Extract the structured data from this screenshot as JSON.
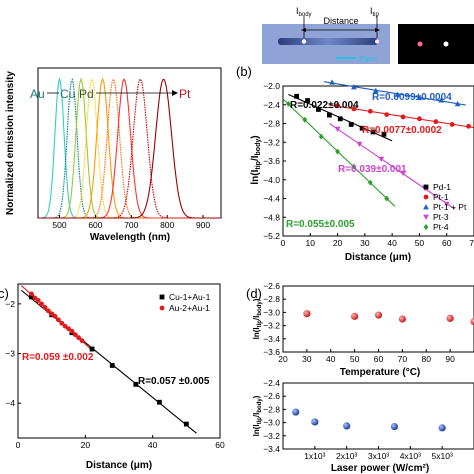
{
  "chart_data": [
    {
      "panel": "a",
      "type": "line",
      "xlabel": "Wavelength (nm)",
      "ylabel": "Normalized emission intensity",
      "xlim": [
        440,
        950
      ],
      "xticks": [
        500,
        600,
        700,
        800,
        900
      ],
      "annotations": [
        "Au",
        "Cu",
        "Pd",
        "Pt"
      ],
      "series": [
        {
          "peak": 500,
          "width": 30,
          "color": "#33cccc"
        },
        {
          "peak": 535,
          "width": 32,
          "color": "#008080"
        },
        {
          "peak": 560,
          "width": 34,
          "color": "#99cc33"
        },
        {
          "peak": 590,
          "width": 36,
          "color": "#ffcc00"
        },
        {
          "peak": 620,
          "width": 38,
          "color": "#ff9900"
        },
        {
          "peak": 650,
          "width": 40,
          "color": "#ff6600"
        },
        {
          "peak": 680,
          "width": 42,
          "color": "#ff3333"
        },
        {
          "peak": 725,
          "width": 46,
          "color": "#cc0000"
        },
        {
          "peak": 790,
          "width": 52,
          "color": "#990000"
        }
      ]
    },
    {
      "panel": "b",
      "type": "scatter",
      "xlabel": "Distance (μm)",
      "ylabel": "ln(I",
      "ylabel_sub1": "tip",
      "ylabel_mid": "/I",
      "ylabel_sub2": "body",
      "ylabel_end": ")",
      "xlim": [
        0,
        70
      ],
      "ylim": [
        -5.2,
        -2.0
      ],
      "xticks": [
        0,
        10,
        20,
        30,
        40,
        50,
        60,
        70
      ],
      "yticks": [
        -2.0,
        -2.4,
        -2.8,
        -3.2,
        -3.6,
        -4.0,
        -4.4,
        -4.8,
        -5.2
      ],
      "inset": {
        "distance_label": "Distance",
        "body_label": "I",
        "body_sub": "body",
        "tip_label": "I",
        "tip_sub": "tip",
        "scale_label": "30μm"
      },
      "series": [
        {
          "name": "Pd-1",
          "color": "#000000",
          "marker": "square",
          "rate": "R=0.022±0.004",
          "x": [
            5,
            9,
            13,
            17,
            21,
            25,
            29,
            33,
            37
          ],
          "y": [
            -2.22,
            -2.31,
            -2.5,
            -2.62,
            -2.7,
            -2.82,
            -2.9,
            -2.98,
            -3.03
          ]
        },
        {
          "name": "Pt-1",
          "color": "#e31a1c",
          "marker": "circle",
          "rate": "R=0.0077±0.0002",
          "x": [
            20,
            26,
            32,
            38,
            44,
            50,
            56,
            62,
            68
          ],
          "y": [
            -2.42,
            -2.49,
            -2.54,
            -2.61,
            -2.66,
            -2.7,
            -2.76,
            -2.82,
            -2.86
          ]
        },
        {
          "name": "Pt-1 + Pt",
          "color": "#1f5fbf",
          "marker": "triangle",
          "rate": "R=0.0099±0.0004",
          "x": [
            18,
            26,
            34,
            42,
            50,
            58,
            64
          ],
          "y": [
            -1.92,
            -2.02,
            -2.1,
            -2.18,
            -2.25,
            -2.3,
            -2.38
          ]
        },
        {
          "name": "Pt-3",
          "color": "#cc44cc",
          "marker": "triangle-down",
          "rate": "R=0.039±0.001",
          "x": [
            20,
            28,
            36,
            44,
            52,
            60
          ],
          "y": [
            -2.92,
            -3.24,
            -3.56,
            -3.86,
            -4.18,
            -4.52
          ]
        },
        {
          "name": "Pt-4",
          "color": "#2ca02c",
          "marker": "diamond",
          "rate": "R=0.055±0.005",
          "x": [
            2,
            8,
            14,
            20,
            26,
            32,
            38
          ],
          "y": [
            -2.38,
            -2.72,
            -3.08,
            -3.4,
            -3.72,
            -4.06,
            -4.4
          ]
        }
      ]
    },
    {
      "panel": "c",
      "type": "scatter",
      "xlabel": "Distance (μm)",
      "xlim": [
        0,
        60
      ],
      "ylim": [
        -4.7,
        -1.6
      ],
      "xticks": [
        0,
        20,
        40,
        60
      ],
      "yticks": [
        -2,
        -3,
        -4
      ],
      "series": [
        {
          "name": "Cu-1+Au-1",
          "color": "#000000",
          "marker": "square",
          "rate": "R=0.057 ±0.005",
          "x": [
            4,
            10,
            16,
            22,
            28,
            35,
            42,
            50
          ],
          "y": [
            -1.86,
            -2.22,
            -2.58,
            -2.91,
            -3.24,
            -3.62,
            -3.98,
            -4.42
          ]
        },
        {
          "name": "Au-2+Au-1",
          "color": "#e31a1c",
          "marker": "circle",
          "rate": "R=0.059 ±0.002",
          "x": [
            4,
            5,
            6,
            7,
            8,
            9,
            10,
            11,
            12,
            13,
            14,
            15,
            16,
            17,
            18,
            19
          ],
          "y": [
            -1.8,
            -1.88,
            -1.93,
            -2.0,
            -2.07,
            -2.14,
            -2.2,
            -2.25,
            -2.32,
            -2.39,
            -2.45,
            -2.5,
            -2.55,
            -2.62,
            -2.68,
            -2.74
          ]
        }
      ]
    },
    {
      "panel": "d",
      "type": "scatter",
      "xlabel": "Temperature (°C)",
      "ylabel": "ln(I",
      "ylabel_sub1": "tip",
      "ylabel_mid": "/I",
      "ylabel_sub2": "body",
      "ylabel_end": ")",
      "xlim": [
        20,
        100
      ],
      "ylim": [
        -3.6,
        -2.6
      ],
      "xticks": [
        20,
        30,
        40,
        50,
        60,
        70,
        80,
        90
      ],
      "yticks": [
        -2.6,
        -2.8,
        -3.0,
        -3.2,
        -3.4,
        -3.6
      ],
      "series": [
        {
          "color": "#e31a1c",
          "marker": "sphere",
          "x": [
            30,
            50,
            60,
            70,
            90,
            100
          ],
          "y": [
            -3.02,
            -3.06,
            -3.04,
            -3.1,
            -3.09,
            -3.14
          ]
        }
      ]
    },
    {
      "panel": "d2",
      "type": "scatter",
      "xlabel": "Laser power (W/cm²)",
      "xlim": [
        0,
        6000
      ],
      "ylim": [
        -3.4,
        -2.4
      ],
      "xticks": [
        1000,
        2000,
        3000,
        4000,
        5000
      ],
      "xticklabels": [
        "1x10³",
        "2x10³",
        "3x10³",
        "4x10³",
        "5x10³"
      ],
      "yticks": [
        -2.4,
        -2.6,
        -2.8,
        -3.0,
        -3.2,
        -3.4
      ],
      "series": [
        {
          "color": "#2255bb",
          "marker": "sphere",
          "x": [
            400,
            1000,
            2000,
            3500,
            5000
          ],
          "y": [
            -2.84,
            -2.99,
            -3.05,
            -3.06,
            -3.08
          ]
        }
      ]
    }
  ],
  "panel_labels": {
    "b": "(b)",
    "c": "c)",
    "d": "(d)"
  }
}
